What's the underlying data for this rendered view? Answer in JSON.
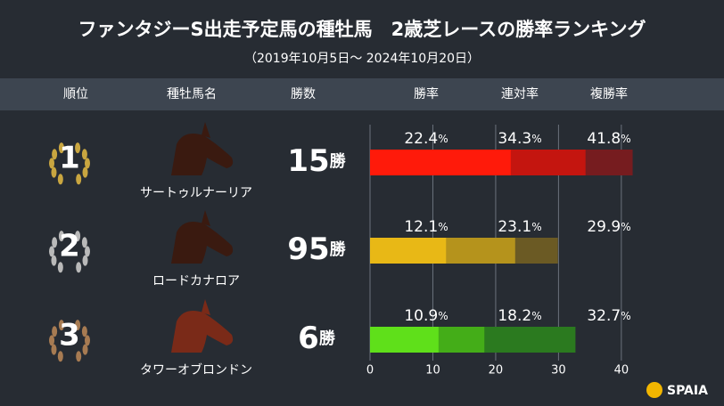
{
  "chart_data": {
    "type": "bar",
    "title": "ファンタジーS出走予定馬の種牡馬　2歳芝レースの勝率ランキング",
    "subtitle": "（2019年10月5日～ 2024年10月20日）",
    "columns": [
      "順位",
      "種牡馬名",
      "勝数"
    ],
    "ranks": [
      1,
      2,
      3
    ],
    "categories": [
      "サートゥルナーリア",
      "ロードカナロア",
      "タワーオブロンドン"
    ],
    "wins": [
      15,
      95,
      6
    ],
    "wins_unit": "勝",
    "rate_unit": "%",
    "series": [
      {
        "name": "勝率",
        "colors": [
          "#ff1a0a",
          "#e8b816",
          "#5fe01a"
        ],
        "values": [
          22.4,
          12.1,
          10.9
        ]
      },
      {
        "name": "連対率",
        "colors": [
          "#c4150f",
          "#b5931c",
          "#44ad18"
        ],
        "values": [
          34.3,
          23.1,
          18.2
        ]
      },
      {
        "name": "複勝率",
        "colors": [
          "#761c1f",
          "#6b5a24",
          "#2b7a1f"
        ],
        "values": [
          41.8,
          29.9,
          32.7
        ]
      }
    ],
    "xlim": [
      0,
      43
    ],
    "xticks": [
      0,
      10,
      20,
      30,
      40
    ],
    "grid": true,
    "logo": "SPAIA"
  }
}
